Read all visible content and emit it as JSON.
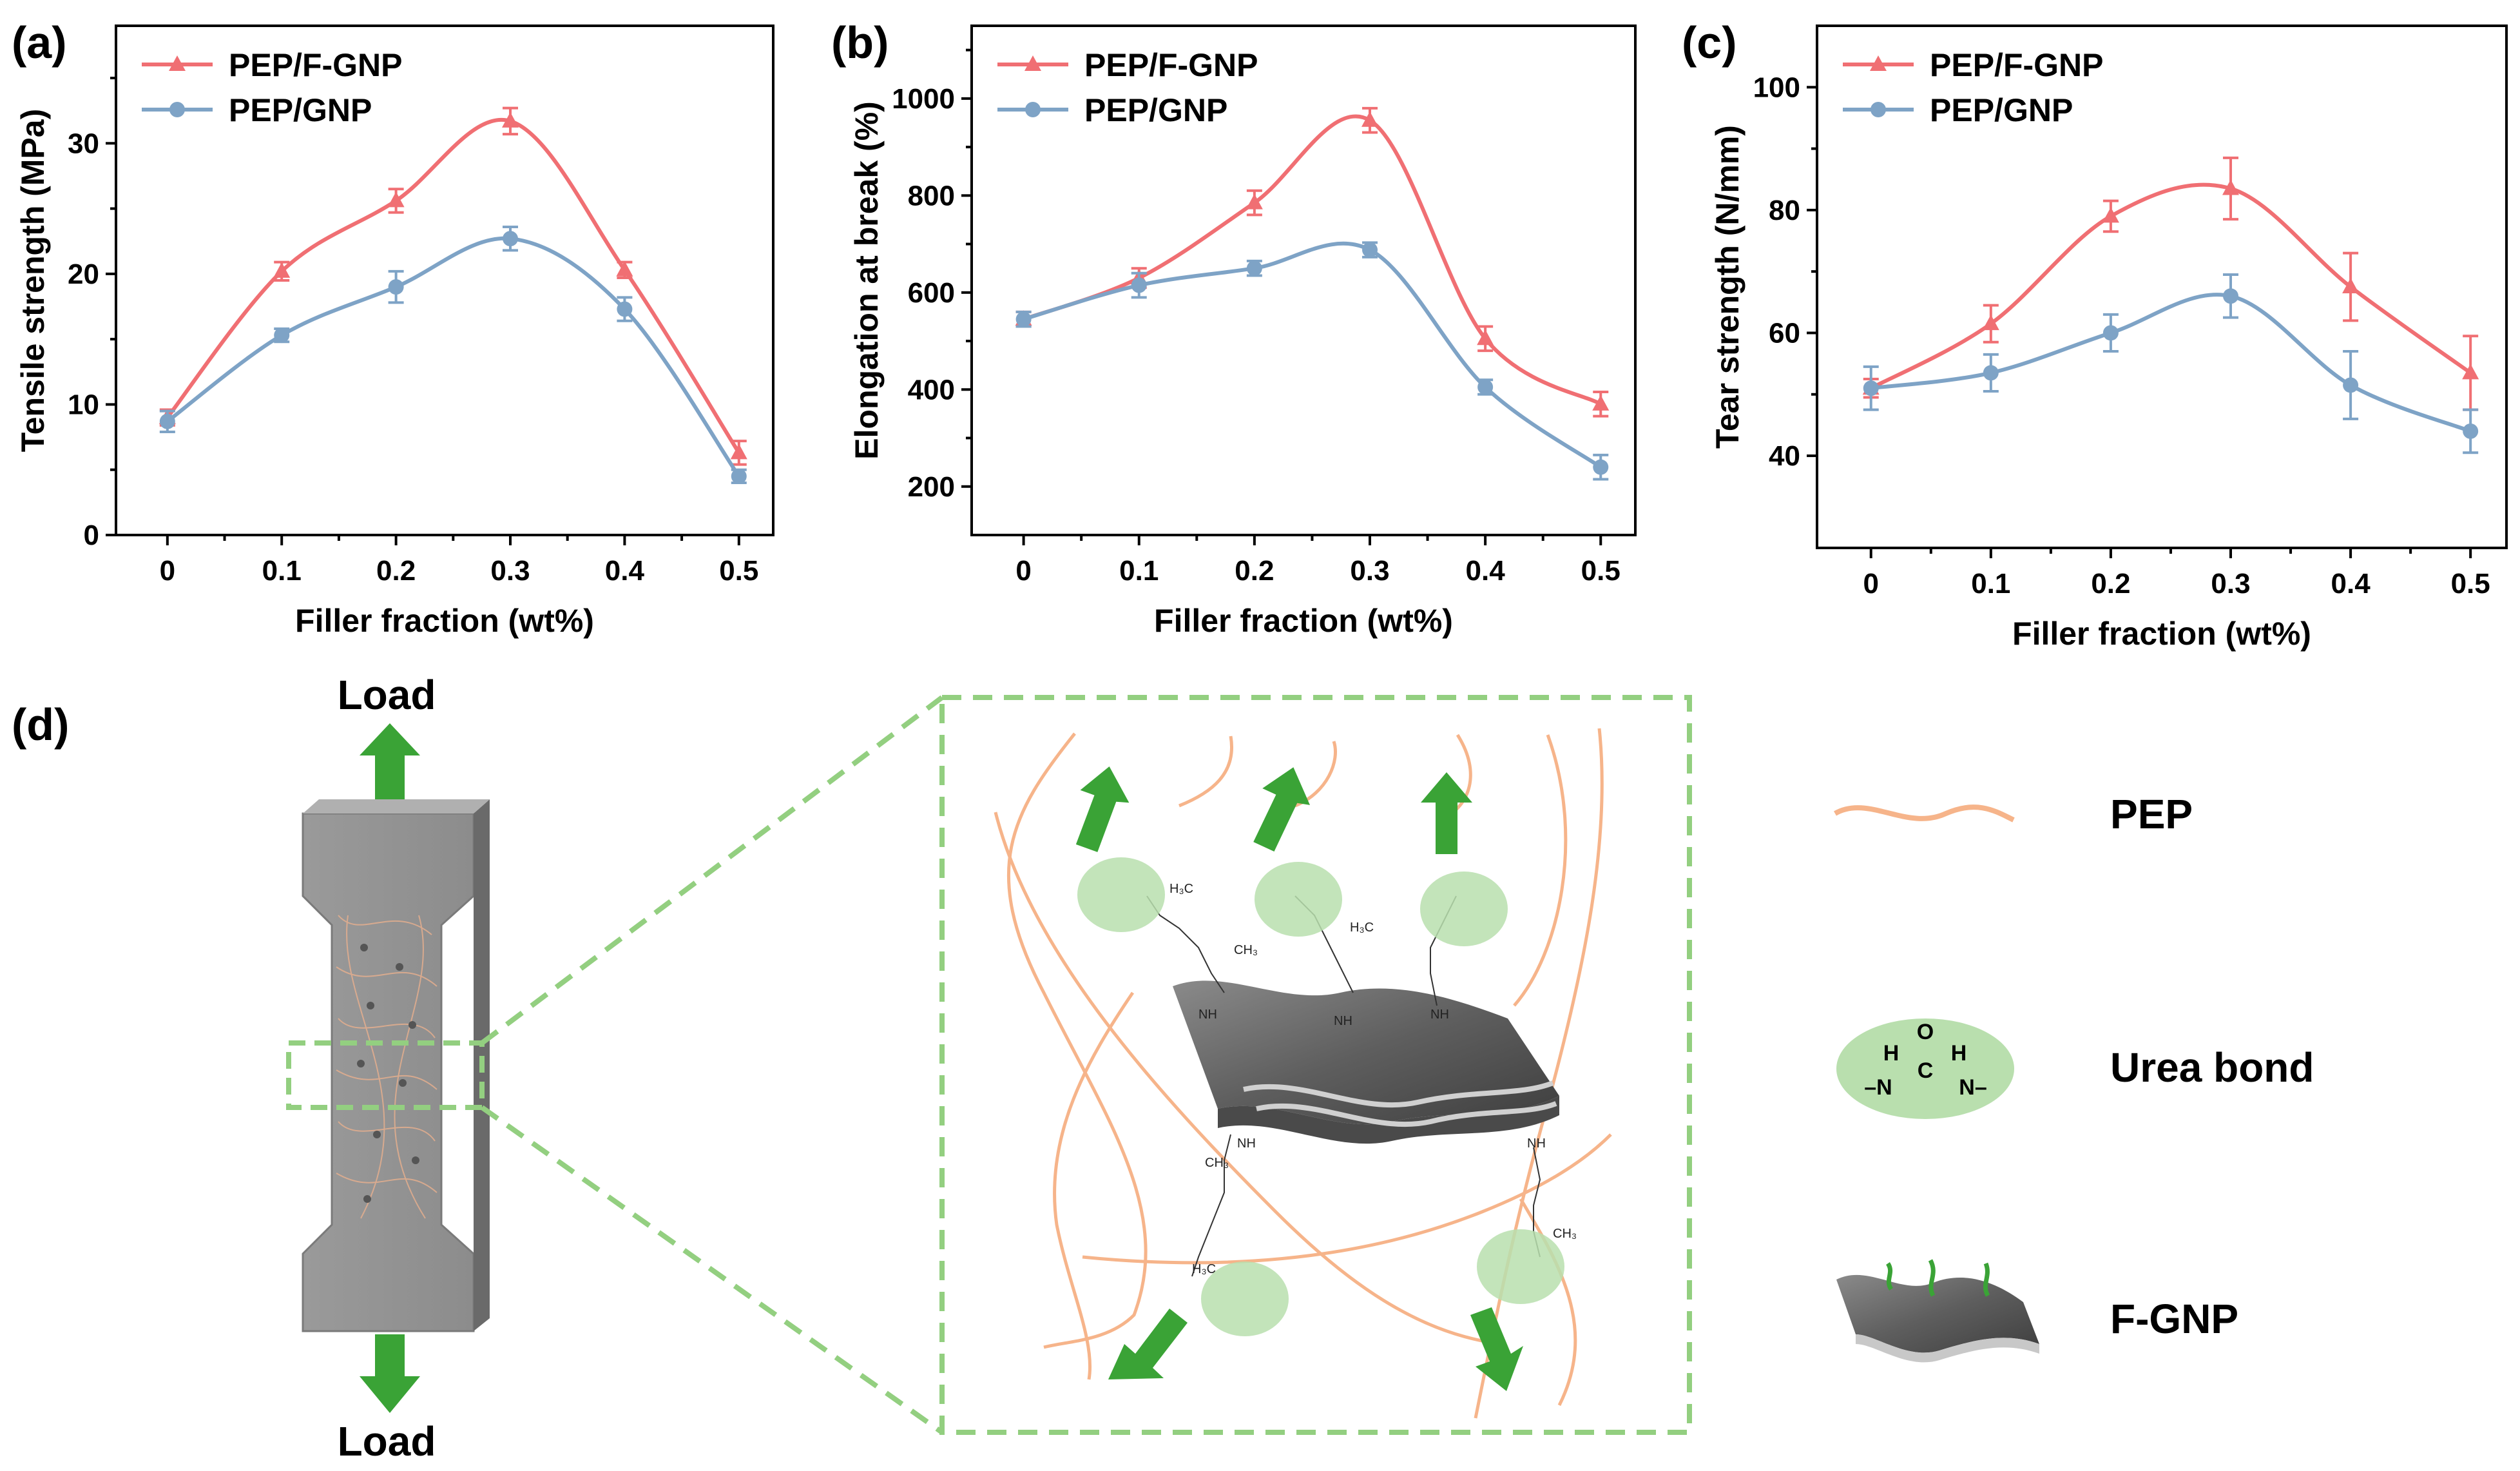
{
  "colors": {
    "fgnp": "#f06f73",
    "gnp": "#7ea3c6",
    "pep_fiber": "#f6b48a",
    "urea_fill": "#b9dfae",
    "arrow_green": "#3aa336",
    "dash_green": "#93cf80",
    "sheet_gray": "#6e6e6e"
  },
  "chart_data": [
    {
      "panel": "(a)",
      "type": "line",
      "xlabel": "Filler fraction (wt%)",
      "ylabel": "Tensile strength (MPa)",
      "x": [
        0,
        0.1,
        0.2,
        0.3,
        0.4,
        0.5
      ],
      "x_tick_labels": [
        "0",
        "0.1",
        "0.2",
        "0.3",
        "0.4",
        "0.5"
      ],
      "xlim": [
        -0.045,
        0.53
      ],
      "ylim": [
        0,
        39
      ],
      "yticks": [
        0,
        10,
        20,
        30
      ],
      "legend_position": "top-left",
      "series": [
        {
          "name": "PEP/F-GNP",
          "marker": "triangle",
          "color_key": "fgnp",
          "values": [
            9.0,
            20.2,
            25.6,
            31.7,
            20.3,
            6.3
          ],
          "errors": [
            0.6,
            0.7,
            0.9,
            1.0,
            0.6,
            0.9
          ]
        },
        {
          "name": "PEP/GNP",
          "marker": "circle",
          "color_key": "gnp",
          "values": [
            8.7,
            15.3,
            19.0,
            22.7,
            17.3,
            4.5
          ],
          "errors": [
            0.8,
            0.5,
            1.2,
            0.9,
            0.9,
            0.5
          ]
        }
      ]
    },
    {
      "panel": "(b)",
      "type": "line",
      "xlabel": "Filler fraction (wt%)",
      "ylabel": "Elongation at break (%)",
      "x": [
        0,
        0.1,
        0.2,
        0.3,
        0.4,
        0.5
      ],
      "x_tick_labels": [
        "0",
        "0.1",
        "0.2",
        "0.3",
        "0.4",
        "0.5"
      ],
      "xlim": [
        -0.045,
        0.53
      ],
      "ylim": [
        100,
        1150
      ],
      "yticks": [
        200,
        400,
        600,
        800,
        1000
      ],
      "legend_position": "top-left",
      "series": [
        {
          "name": "PEP/F-GNP",
          "marker": "triangle",
          "color_key": "fgnp",
          "values": [
            545,
            630,
            785,
            955,
            505,
            370
          ],
          "errors": [
            15,
            20,
            25,
            25,
            25,
            25
          ]
        },
        {
          "name": "PEP/GNP",
          "marker": "circle",
          "color_key": "gnp",
          "values": [
            545,
            615,
            650,
            688,
            405,
            240
          ],
          "errors": [
            15,
            25,
            15,
            15,
            15,
            25
          ]
        }
      ]
    },
    {
      "panel": "(c)",
      "type": "line",
      "xlabel": "Filler fraction (wt%)",
      "ylabel": "Tear strength (N/mm)",
      "x": [
        0,
        0.1,
        0.2,
        0.3,
        0.4,
        0.5
      ],
      "x_tick_labels": [
        "0",
        "0.1",
        "0.2",
        "0.3",
        "0.4",
        "0.5"
      ],
      "xlim": [
        -0.045,
        0.53
      ],
      "ylim": [
        25,
        110
      ],
      "yticks": [
        40,
        60,
        80,
        100
      ],
      "legend_position": "top-left",
      "series": [
        {
          "name": "PEP/F-GNP",
          "marker": "triangle",
          "color_key": "fgnp",
          "values": [
            51,
            61.5,
            79,
            83.5,
            67.5,
            53.5
          ],
          "errors": [
            1.5,
            3.0,
            2.5,
            5.0,
            5.5,
            6.0
          ]
        },
        {
          "name": "PEP/GNP",
          "marker": "circle",
          "color_key": "gnp",
          "values": [
            51,
            53.5,
            60,
            66,
            51.5,
            44
          ],
          "errors": [
            3.5,
            3.0,
            3.0,
            3.5,
            5.5,
            3.5
          ]
        }
      ]
    }
  ],
  "schematic": {
    "panel": "(d)",
    "load_top": "Load",
    "load_bottom": "Load",
    "legend": [
      {
        "key": "pep",
        "label": "PEP"
      },
      {
        "key": "urea",
        "label": "Urea bond"
      },
      {
        "key": "fgnp",
        "label": "F-GNP"
      }
    ],
    "urea_formula": {
      "h1": "H",
      "h2": "H",
      "o": "O",
      "c": "C",
      "n1": "–N",
      "n2": "N–"
    }
  }
}
